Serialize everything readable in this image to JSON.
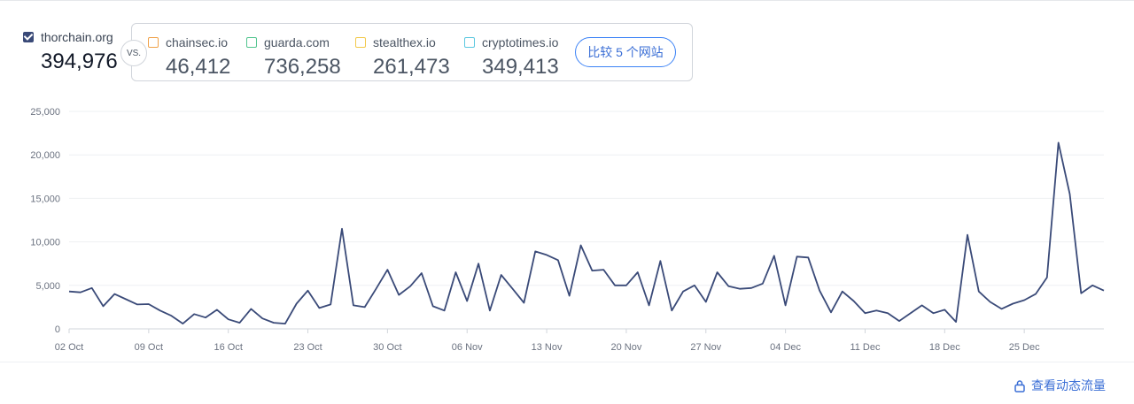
{
  "primary": {
    "site": "thorchain.org",
    "value": "394,976",
    "checked": true
  },
  "vs_label": "VS.",
  "competitors": [
    {
      "site": "chainsec.io",
      "value": "46,412",
      "color": "#f0a24b"
    },
    {
      "site": "guarda.com",
      "value": "736,258",
      "color": "#53c58f"
    },
    {
      "site": "stealthex.io",
      "value": "261,473",
      "color": "#f2c94c"
    },
    {
      "site": "cryptotimes.io",
      "value": "349,413",
      "color": "#5cc8e0"
    }
  ],
  "compare_button": "比较 5 个网站",
  "traffic_link": "查看动态流量",
  "icons": {
    "lock": "lock-icon",
    "checkbox": "checkbox-icon"
  },
  "chart_data": {
    "type": "line",
    "series": [
      {
        "name": "thorchain.org",
        "color": "#3a4a78",
        "values": [
          4300,
          4200,
          4700,
          2600,
          4000,
          3400,
          2800,
          2850,
          2100,
          1500,
          600,
          1700,
          1300,
          2200,
          1100,
          700,
          2300,
          1200,
          700,
          600,
          2900,
          4400,
          2400,
          2800,
          11500,
          2700,
          2500,
          4600,
          6800,
          3900,
          4900,
          6400,
          2600,
          2100,
          6500,
          3200,
          7500,
          2100,
          6200,
          4600,
          3000,
          8900,
          8500,
          7900,
          3800,
          9600,
          6700,
          6800,
          5000,
          5000,
          6500,
          2700,
          7800,
          2100,
          4300,
          5000,
          3100,
          6500,
          4900,
          4600,
          4700,
          5200,
          8400,
          2700,
          8300,
          8200,
          4400,
          1900,
          4300,
          3200,
          1800,
          2100,
          1800,
          900,
          1800,
          2700,
          1800,
          2200,
          800,
          10800,
          4300,
          3100,
          2300,
          2900,
          3300,
          4000,
          5900,
          21400,
          15500,
          4100,
          5000,
          4400
        ]
      }
    ],
    "x_start": "2023-10-02",
    "x_end": "2024-01-01",
    "x_ticks": [
      "02 Oct",
      "09 Oct",
      "16 Oct",
      "23 Oct",
      "30 Oct",
      "06 Nov",
      "13 Nov",
      "20 Nov",
      "27 Nov",
      "04 Dec",
      "11 Dec",
      "18 Dec",
      "25 Dec"
    ],
    "y_ticks": [
      "0",
      "5,000",
      "10,000",
      "15,000",
      "20,000",
      "25,000"
    ],
    "ylim": [
      0,
      25000
    ],
    "grid": true
  }
}
